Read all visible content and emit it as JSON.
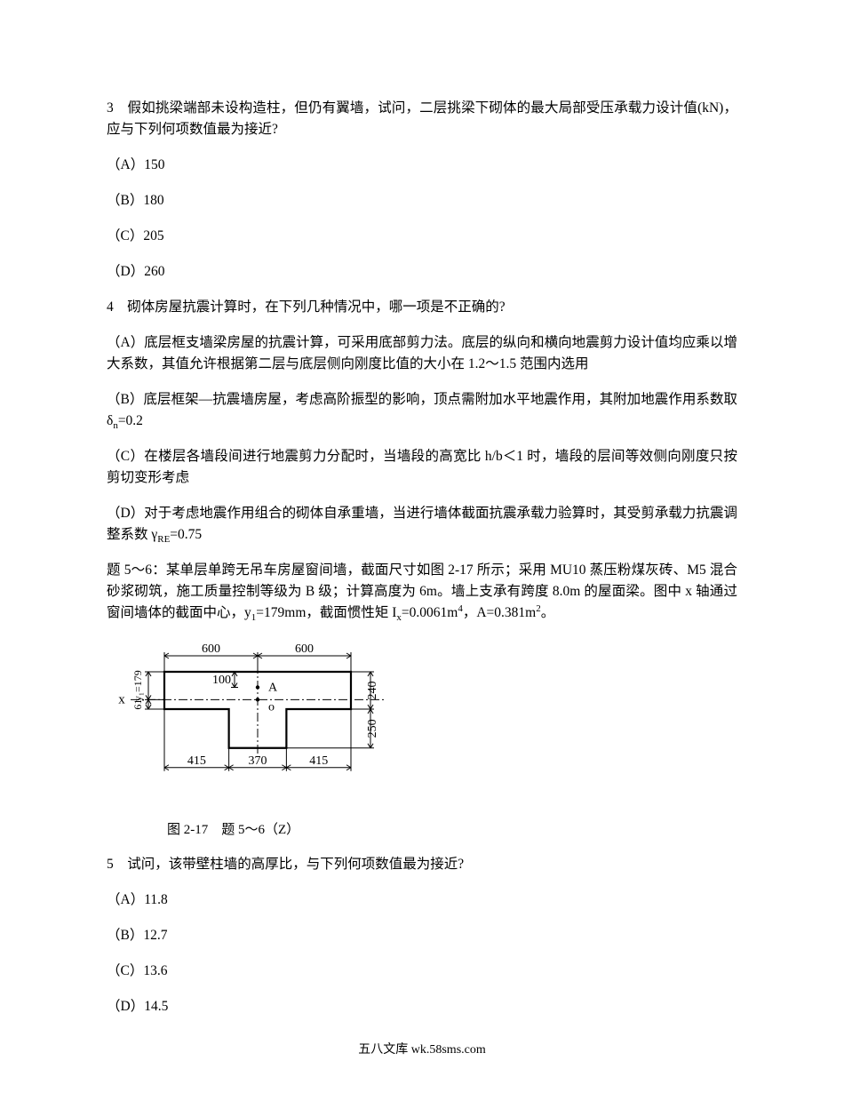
{
  "q3": {
    "stem": "3　假如挑梁端部未设构造柱，但仍有翼墙，试问，二层挑梁下砌体的最大局部受压承载力设计值(kN)，应与下列何项数值最为接近?",
    "opts": {
      "A": "（A）150",
      "B": "（B）180",
      "C": "（C）205",
      "D": "（D）260"
    }
  },
  "q4": {
    "stem": "4　砌体房屋抗震计算时，在下列几种情况中，哪一项是不正确的?",
    "opts": {
      "A": "（A）底层框支墙梁房屋的抗震计算，可采用底部剪力法。底层的纵向和横向地震剪力设计值均应乘以增大系数，其值允许根据第二层与底层侧向刚度比值的大小在 1.2～1.5 范围内选用",
      "B_pre": "（B）底层框架―抗震墙房屋，考虑高阶振型的影响，顶点需附加水平地震作用，其附加地震作用系数取 δ",
      "B_sub": "n",
      "B_post": "=0.2",
      "C": "（C）在楼层各墙段间进行地震剪力分配时，当墙段的高宽比 h/b＜1 时，墙段的层间等效侧向刚度只按剪切变形考虑",
      "D_pre": "（D）对于考虑地震作用组合的砌体自承重墙，当进行墙体截面抗震承载力验算时，其受剪承载力抗震调整系数 γ",
      "D_sub": "RE",
      "D_post": "=0.75"
    }
  },
  "q56intro": {
    "line1_pre": "题 5～6：某单层单跨无吊车房屋窗间墙，截面尺寸如图 2-17 所示；采用 MU10 蒸压粉煤灰砖、M5 混合砂浆砌筑，施工质量控制等级为 B 级；计算高度为 6m。墙上支承有跨度 8.0m 的屋面梁。图中 x 轴通过窗间墙体的截面中心，y",
    "line1_sub1": "1",
    "line1_mid": "=179mm，截面惯性矩 I",
    "line1_sub2": "x",
    "line1_mid2": "=0.0061m",
    "line1_sup1": "4",
    "line1_mid3": "，A=0.381m",
    "line1_sup2": "2",
    "line1_end": "。"
  },
  "figure": {
    "caption": "图 2-17　题 5～6（Z）",
    "dims": {
      "top_left": "600",
      "top_right": "600",
      "inner_top": "100",
      "right_upper": "240",
      "right_lower": "250",
      "left_y1_label": "y₁=179",
      "left_61": "61",
      "bottom_left": "415",
      "bottom_mid": "370",
      "bottom_right": "415",
      "axis_x": "x",
      "pointA": "A",
      "pointO": "o"
    },
    "colors": {
      "stroke": "#000000",
      "bg": "#ffffff",
      "font_size_dim": 14,
      "font_size_axis": 15
    }
  },
  "q5": {
    "stem": "5　试问，该带壁柱墙的高厚比，与下列何项数值最为接近?",
    "opts": {
      "A": "（A）11.8",
      "B": "（B）12.7",
      "C": "（C）13.6",
      "D": "（D）14.5"
    }
  },
  "footer": "五八文库 wk.58sms.com"
}
